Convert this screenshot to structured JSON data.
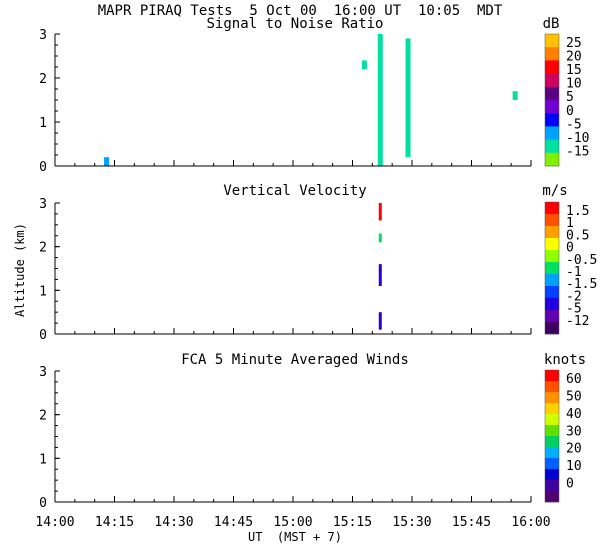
{
  "header": {
    "title_line": "MAPR PIRAQ Tests  5 Oct 00  16:00 UT  10:05  MDT"
  },
  "shared": {
    "y_axis_label": "Altitude (km)",
    "x_axis_label": "UT  (MST + 7)",
    "x_ticks": [
      "14:00",
      "14:15",
      "14:30",
      "14:45",
      "15:00",
      "15:15",
      "15:30",
      "15:45",
      "16:00"
    ],
    "y_ticks": [
      "0",
      "1",
      "2",
      "3"
    ]
  },
  "chart_data": [
    {
      "type": "heatmap",
      "title": "Signal to Noise Ratio",
      "units": "dB",
      "ylim": [
        0,
        3
      ],
      "xlim": [
        "14:00",
        "16:00"
      ],
      "colorbar_labels": [
        "25",
        "20",
        "15",
        "10",
        "5",
        "0",
        "-5",
        "-10",
        "-15"
      ],
      "colorbar_colors": [
        "#ffc000",
        "#ff7f00",
        "#ff0000",
        "#d00060",
        "#5a0080",
        "#7000d0",
        "#0000ff",
        "#00a0ff",
        "#00e0a0",
        "#80f000"
      ],
      "features": [
        {
          "desc": "vertical band",
          "time": "15:22",
          "alt_from": 0.0,
          "alt_to": 3.0,
          "value": -15
        },
        {
          "desc": "vertical band",
          "time": "15:29",
          "alt_from": 0.2,
          "alt_to": 2.9,
          "value": -15
        },
        {
          "desc": "patch",
          "time": "15:18",
          "alt_from": 2.2,
          "alt_to": 2.4,
          "value": -12
        },
        {
          "desc": "patch",
          "time": "15:56",
          "alt_from": 1.5,
          "alt_to": 1.7,
          "value": -12
        },
        {
          "desc": "patch",
          "time": "14:13",
          "alt_from": 0.0,
          "alt_to": 0.2,
          "value": -10
        }
      ]
    },
    {
      "type": "heatmap",
      "title": "Vertical Velocity",
      "units": "m/s",
      "ylim": [
        0,
        3
      ],
      "xlim": [
        "14:00",
        "16:00"
      ],
      "colorbar_labels": [
        "1.5",
        "1",
        "0.5",
        "0",
        "-0.5",
        "-1",
        "-1.5",
        "-2",
        "-5",
        "-12"
      ],
      "colorbar_colors": [
        "#ff0000",
        "#ff5000",
        "#ffa000",
        "#ffff00",
        "#90ff00",
        "#00e060",
        "#00a0ff",
        "#0040ff",
        "#2000e0",
        "#6000b0",
        "#400060"
      ],
      "features": [
        {
          "desc": "column",
          "time": "15:22",
          "alt_from": 2.6,
          "alt_to": 3.0,
          "value": 1.5
        },
        {
          "desc": "column",
          "time": "15:22",
          "alt_from": 2.1,
          "alt_to": 2.3,
          "value": -1
        },
        {
          "desc": "column",
          "time": "15:22",
          "alt_from": 1.1,
          "alt_to": 1.6,
          "value": -5
        },
        {
          "desc": "column",
          "time": "15:22",
          "alt_from": 0.1,
          "alt_to": 0.5,
          "value": -5
        }
      ]
    },
    {
      "type": "heatmap",
      "title": "FCA 5 Minute Averaged Winds",
      "units": "knots",
      "ylim": [
        0,
        3
      ],
      "xlim": [
        "14:00",
        "16:00"
      ],
      "colorbar_labels": [
        "60",
        "50",
        "40",
        "30",
        "20",
        "10",
        "0"
      ],
      "colorbar_colors": [
        "#ff0000",
        "#ff5000",
        "#ff9000",
        "#ffd000",
        "#d0ff00",
        "#60e000",
        "#00d060",
        "#00b0ff",
        "#0060ff",
        "#0000d0",
        "#4000a0",
        "#500070"
      ],
      "features": []
    }
  ]
}
